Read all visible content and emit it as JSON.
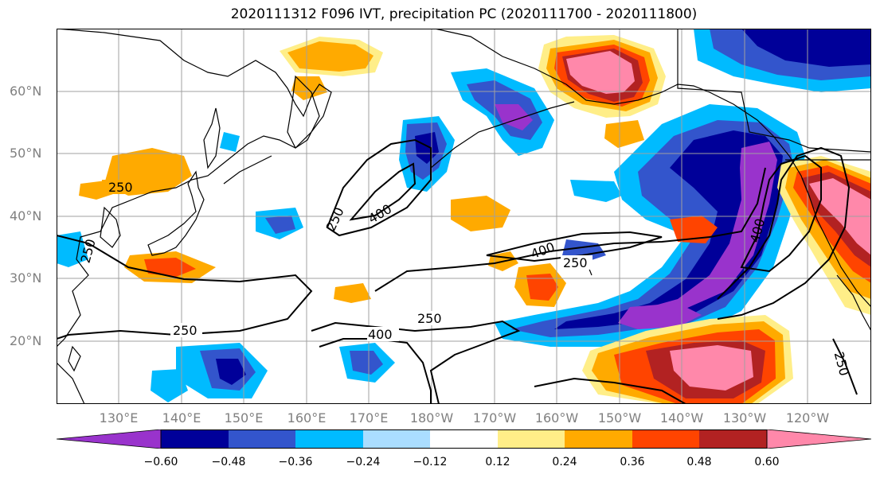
{
  "title": "2020111312 F096 IVT, precipitation PC (2020111700 - 2020111800)",
  "lat_labels": [
    "60°N",
    "50°N",
    "40°N",
    "30°N",
    "20°N"
  ],
  "lon_labels": [
    "130°E",
    "140°E",
    "150°E",
    "160°E",
    "170°E",
    "180°W",
    "170°W",
    "160°W",
    "150°W",
    "140°W",
    "130°W",
    "120°W"
  ],
  "contour_labels": {
    "c1": "250",
    "c2": "250",
    "c3": "250",
    "c4": "400",
    "c5": "400",
    "c6": "250",
    "c7": "250",
    "c8": "250",
    "c9": "400",
    "c10": "400",
    "c11": "250"
  },
  "colorbar": {
    "colors": [
      "#9933cc",
      "#000099",
      "#3355cc",
      "#00bbff",
      "#aaddff",
      "#ffffff",
      "#ffee88",
      "#ffaa00",
      "#ff4400",
      "#b22222",
      "#ff88aa"
    ],
    "ticks": [
      "−0.60",
      "−0.48",
      "−0.36",
      "−0.24",
      "−0.12",
      "0.12",
      "0.24",
      "0.36",
      "0.48",
      "0.60"
    ]
  },
  "colors": {
    "purple": "#9933cc",
    "navy": "#000099",
    "blue": "#3355cc",
    "sky": "#00bbff",
    "lightblue": "#aaddff",
    "yellow": "#ffee88",
    "orange": "#ffaa00",
    "redorange": "#ff4400",
    "darkred": "#b22222",
    "pink": "#ff88aa"
  }
}
